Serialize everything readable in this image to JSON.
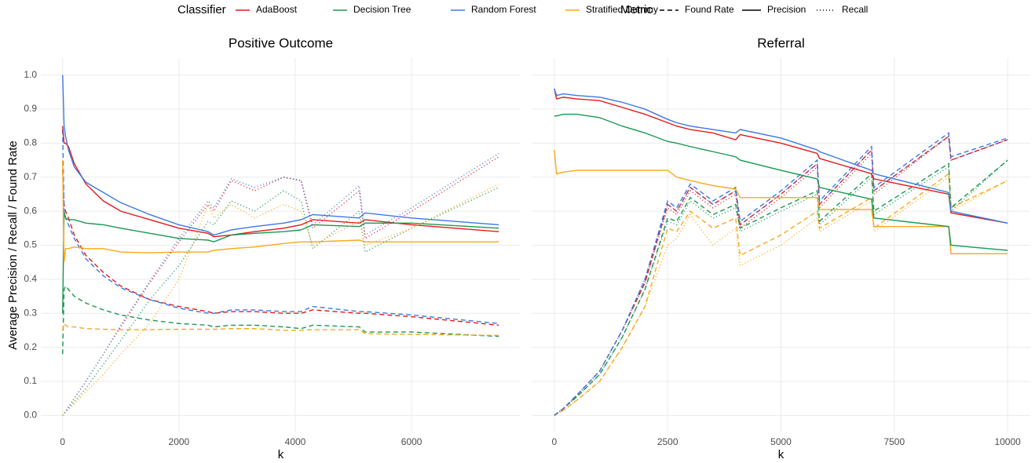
{
  "legend": {
    "classifier_title": "Classifier",
    "metric_title": "Metric",
    "classifiers": [
      {
        "name": "AdaBoost",
        "color": "#e41a1c"
      },
      {
        "name": "Decision Tree",
        "color": "#1a9850"
      },
      {
        "name": "Random Forest",
        "color": "#3b78e7"
      },
      {
        "name": "Stratified Dummy",
        "color": "#f9a81a"
      }
    ],
    "metrics": [
      {
        "name": "Found Rate",
        "dash": "6 4"
      },
      {
        "name": "Precision",
        "dash": "none"
      },
      {
        "name": "Recall",
        "dash": "1 3"
      }
    ]
  },
  "chart_data": [
    {
      "type": "line",
      "title": "Positive Outcome",
      "xlabel": "k",
      "ylabel": "Average Precision / Recall / Found Rate",
      "x": [
        0,
        25,
        50,
        100,
        200,
        400,
        700,
        1000,
        1500,
        2000,
        2500,
        2600,
        2900,
        3300,
        3800,
        4100,
        4300,
        5100,
        5200,
        6000,
        7500
      ],
      "xlim": [
        -375,
        7875
      ],
      "xticks": [
        0,
        2000,
        4000,
        6000
      ],
      "ylim": [
        -0.05,
        1.05
      ],
      "yticks": [
        {
          "value": 0,
          "label": "0.0"
        },
        0.1,
        0.2,
        0.3,
        0.4,
        0.5,
        0.6,
        0.7,
        0.8,
        0.9,
        {
          "value": 1,
          "label": "1.0"
        }
      ],
      "grid": true,
      "series": [
        {
          "classifier": "AdaBoost",
          "metric": "Found Rate",
          "color": "#e41a1c",
          "values": [
            0.72,
            0.62,
            0.6,
            0.58,
            0.53,
            0.47,
            0.42,
            0.38,
            0.34,
            0.32,
            0.305,
            0.3,
            0.305,
            0.305,
            0.3,
            0.3,
            0.31,
            0.3,
            0.3,
            0.29,
            0.265
          ]
        },
        {
          "classifier": "Random Forest",
          "metric": "Found Rate",
          "color": "#3b78e7",
          "values": [
            0.84,
            0.6,
            0.58,
            0.56,
            0.52,
            0.46,
            0.41,
            0.375,
            0.34,
            0.315,
            0.3,
            0.3,
            0.31,
            0.31,
            0.305,
            0.305,
            0.32,
            0.305,
            0.305,
            0.295,
            0.27
          ]
        },
        {
          "classifier": "Decision Tree",
          "metric": "Found Rate",
          "color": "#1a9850",
          "values": [
            0.18,
            0.37,
            0.38,
            0.37,
            0.35,
            0.33,
            0.31,
            0.295,
            0.28,
            0.27,
            0.265,
            0.26,
            0.265,
            0.265,
            0.26,
            0.255,
            0.265,
            0.26,
            0.245,
            0.245,
            0.232
          ]
        },
        {
          "classifier": "Stratified Dummy",
          "metric": "Found Rate",
          "color": "#f9a81a",
          "values": [
            0.25,
            0.27,
            0.265,
            0.26,
            0.26,
            0.255,
            0.253,
            0.252,
            0.252,
            0.253,
            0.253,
            0.253,
            0.255,
            0.255,
            0.25,
            0.25,
            0.252,
            0.252,
            0.24,
            0.238,
            0.235
          ]
        },
        {
          "classifier": "AdaBoost",
          "metric": "Precision",
          "color": "#e41a1c",
          "values": [
            0.85,
            0.8,
            0.8,
            0.79,
            0.74,
            0.68,
            0.63,
            0.6,
            0.575,
            0.55,
            0.535,
            0.525,
            0.53,
            0.54,
            0.55,
            0.56,
            0.575,
            0.565,
            0.575,
            0.56,
            0.54
          ]
        },
        {
          "classifier": "Random Forest",
          "metric": "Precision",
          "color": "#3b78e7",
          "values": [
            1.0,
            0.85,
            0.82,
            0.78,
            0.73,
            0.685,
            0.655,
            0.625,
            0.59,
            0.56,
            0.54,
            0.53,
            0.545,
            0.555,
            0.565,
            0.575,
            0.59,
            0.58,
            0.595,
            0.58,
            0.56
          ]
        },
        {
          "classifier": "Decision Tree",
          "metric": "Precision",
          "color": "#1a9850",
          "values": [
            0.3,
            0.6,
            0.58,
            0.575,
            0.575,
            0.565,
            0.56,
            0.55,
            0.535,
            0.52,
            0.515,
            0.51,
            0.53,
            0.535,
            0.54,
            0.545,
            0.56,
            0.555,
            0.565,
            0.565,
            0.55
          ]
        },
        {
          "classifier": "Stratified Dummy",
          "metric": "Precision",
          "color": "#f9a81a",
          "values": [
            0.75,
            0.45,
            0.49,
            0.49,
            0.495,
            0.49,
            0.49,
            0.48,
            0.478,
            0.48,
            0.48,
            0.485,
            0.49,
            0.495,
            0.505,
            0.51,
            0.51,
            0.515,
            0.51,
            0.51,
            0.51
          ]
        },
        {
          "classifier": "AdaBoost",
          "metric": "Recall",
          "color": "#e41a1c",
          "values": [
            0,
            0.006,
            0.012,
            0.025,
            0.05,
            0.1,
            0.18,
            0.26,
            0.39,
            0.51,
            0.62,
            0.6,
            0.69,
            0.66,
            0.7,
            0.69,
            0.55,
            0.66,
            0.52,
            0.6,
            0.76
          ]
        },
        {
          "classifier": "Random Forest",
          "metric": "Recall",
          "color": "#3b78e7",
          "values": [
            0,
            0.006,
            0.012,
            0.025,
            0.05,
            0.1,
            0.18,
            0.265,
            0.395,
            0.52,
            0.63,
            0.61,
            0.695,
            0.67,
            0.7,
            0.69,
            0.56,
            0.675,
            0.53,
            0.61,
            0.77
          ]
        },
        {
          "classifier": "Decision Tree",
          "metric": "Recall",
          "color": "#1a9850",
          "values": [
            0,
            0.005,
            0.01,
            0.02,
            0.04,
            0.08,
            0.15,
            0.22,
            0.34,
            0.44,
            0.57,
            0.56,
            0.63,
            0.6,
            0.66,
            0.63,
            0.49,
            0.6,
            0.48,
            0.55,
            0.67
          ]
        },
        {
          "classifier": "Stratified Dummy",
          "metric": "Recall",
          "color": "#f9a81a",
          "values": [
            0,
            0.004,
            0.008,
            0.017,
            0.033,
            0.07,
            0.12,
            0.18,
            0.27,
            0.4,
            0.62,
            0.58,
            0.62,
            0.58,
            0.62,
            0.6,
            0.5,
            0.57,
            0.5,
            0.55,
            0.68
          ]
        }
      ]
    },
    {
      "type": "line",
      "title": "Referral",
      "xlabel": "k",
      "x": [
        0,
        50,
        200,
        500,
        1000,
        1500,
        2000,
        2500,
        2700,
        3000,
        3500,
        4000,
        4100,
        5000,
        5800,
        5850,
        7000,
        7050,
        8700,
        8750,
        10000
      ],
      "xlim": [
        -500,
        10500
      ],
      "xticks": [
        0,
        2500,
        5000,
        7500,
        10000
      ],
      "ylim": [
        -0.05,
        1.05
      ],
      "yticks": [
        {
          "value": 0,
          "label": "0.0"
        },
        0.1,
        0.2,
        0.3,
        0.4,
        0.5,
        0.6,
        0.7,
        0.8,
        0.9,
        {
          "value": 1,
          "label": "1.0"
        }
      ],
      "grid": true,
      "series": [
        {
          "classifier": "Stratified Dummy",
          "metric": "Found Rate",
          "color": "#f9a81a",
          "values": [
            0,
            0.004,
            0.015,
            0.045,
            0.1,
            0.2,
            0.32,
            0.55,
            0.54,
            0.6,
            0.55,
            0.58,
            0.47,
            0.53,
            0.6,
            0.55,
            0.64,
            0.55,
            0.71,
            0.61,
            0.69
          ]
        },
        {
          "classifier": "Decision Tree",
          "metric": "Found Rate",
          "color": "#1a9850",
          "values": [
            0,
            0.005,
            0.02,
            0.055,
            0.12,
            0.23,
            0.37,
            0.58,
            0.57,
            0.64,
            0.59,
            0.62,
            0.55,
            0.61,
            0.66,
            0.57,
            0.71,
            0.6,
            0.74,
            0.61,
            0.75
          ]
        },
        {
          "classifier": "AdaBoost",
          "metric": "Found Rate",
          "color": "#e41a1c",
          "values": [
            0,
            0.005,
            0.02,
            0.06,
            0.13,
            0.25,
            0.39,
            0.62,
            0.6,
            0.67,
            0.62,
            0.66,
            0.56,
            0.65,
            0.74,
            0.62,
            0.78,
            0.66,
            0.82,
            0.75,
            0.81
          ]
        },
        {
          "classifier": "Random Forest",
          "metric": "Found Rate",
          "color": "#3b78e7",
          "values": [
            0,
            0.005,
            0.02,
            0.06,
            0.13,
            0.25,
            0.4,
            0.63,
            0.61,
            0.68,
            0.63,
            0.67,
            0.57,
            0.66,
            0.75,
            0.63,
            0.79,
            0.67,
            0.83,
            0.76,
            0.815
          ]
        },
        {
          "classifier": "Stratified Dummy",
          "metric": "Recall",
          "color": "#f9a81a",
          "values": [
            0,
            0.004,
            0.015,
            0.045,
            0.1,
            0.2,
            0.32,
            0.5,
            0.52,
            0.59,
            0.5,
            0.55,
            0.44,
            0.5,
            0.58,
            0.54,
            0.63,
            0.54,
            0.7,
            0.6,
            0.69
          ]
        },
        {
          "classifier": "Decision Tree",
          "metric": "Recall",
          "color": "#1a9850",
          "values": [
            0,
            0.005,
            0.02,
            0.055,
            0.12,
            0.23,
            0.37,
            0.57,
            0.56,
            0.63,
            0.58,
            0.61,
            0.54,
            0.6,
            0.65,
            0.56,
            0.7,
            0.59,
            0.73,
            0.6,
            0.75
          ]
        },
        {
          "classifier": "AdaBoost",
          "metric": "Recall",
          "color": "#e41a1c",
          "values": [
            0,
            0.005,
            0.02,
            0.06,
            0.13,
            0.25,
            0.39,
            0.61,
            0.59,
            0.66,
            0.61,
            0.65,
            0.55,
            0.64,
            0.73,
            0.61,
            0.77,
            0.65,
            0.82,
            0.75,
            0.81
          ]
        },
        {
          "classifier": "Random Forest",
          "metric": "Recall",
          "color": "#3b78e7",
          "values": [
            0,
            0.005,
            0.02,
            0.06,
            0.13,
            0.25,
            0.4,
            0.62,
            0.6,
            0.67,
            0.62,
            0.66,
            0.56,
            0.65,
            0.74,
            0.62,
            0.78,
            0.66,
            0.82,
            0.75,
            0.81
          ]
        },
        {
          "classifier": "Stratified Dummy",
          "metric": "Precision",
          "color": "#f9a81a",
          "values": [
            0.78,
            0.71,
            0.715,
            0.72,
            0.72,
            0.72,
            0.72,
            0.72,
            0.7,
            0.69,
            0.675,
            0.665,
            0.64,
            0.64,
            0.64,
            0.605,
            0.605,
            0.555,
            0.555,
            0.475,
            0.475
          ]
        },
        {
          "classifier": "Decision Tree",
          "metric": "Precision",
          "color": "#1a9850",
          "values": [
            0.88,
            0.88,
            0.885,
            0.885,
            0.875,
            0.85,
            0.83,
            0.805,
            0.8,
            0.79,
            0.775,
            0.76,
            0.75,
            0.72,
            0.695,
            0.67,
            0.635,
            0.58,
            0.555,
            0.5,
            0.485
          ]
        },
        {
          "classifier": "AdaBoost",
          "metric": "Precision",
          "color": "#e41a1c",
          "values": [
            0.96,
            0.93,
            0.935,
            0.93,
            0.925,
            0.905,
            0.885,
            0.86,
            0.85,
            0.84,
            0.83,
            0.81,
            0.825,
            0.8,
            0.77,
            0.755,
            0.71,
            0.695,
            0.65,
            0.595,
            0.565
          ]
        },
        {
          "classifier": "Random Forest",
          "metric": "Precision",
          "color": "#3b78e7",
          "values": [
            0.96,
            0.94,
            0.945,
            0.94,
            0.935,
            0.92,
            0.9,
            0.87,
            0.86,
            0.85,
            0.84,
            0.83,
            0.84,
            0.815,
            0.78,
            0.775,
            0.72,
            0.71,
            0.655,
            0.6,
            0.565
          ]
        }
      ]
    }
  ]
}
